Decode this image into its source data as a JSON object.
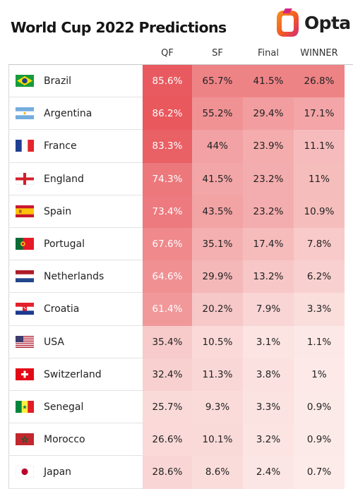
{
  "title": "World Cup 2022 Predictions",
  "brand": {
    "name": "Opta"
  },
  "colors": {
    "heat_max": "#e8585d",
    "heat_min": "#fdf0ee",
    "logo_orange": "#f26a2a",
    "logo_pink": "#d4267f"
  },
  "chart_data": {
    "type": "table",
    "columns": [
      "QF",
      "SF",
      "Final",
      "WINNER"
    ],
    "rows": [
      {
        "team": "Brazil",
        "flag_icon": "brazil-flag-icon",
        "values": [
          "85.6%",
          "65.7%",
          "41.5%",
          "26.8%"
        ]
      },
      {
        "team": "Argentina",
        "flag_icon": "argentina-flag-icon",
        "values": [
          "86.2%",
          "55.2%",
          "29.4%",
          "17.1%"
        ]
      },
      {
        "team": "France",
        "flag_icon": "france-flag-icon",
        "values": [
          "83.3%",
          "44%",
          "23.9%",
          "11.1%"
        ]
      },
      {
        "team": "England",
        "flag_icon": "england-flag-icon",
        "values": [
          "74.3%",
          "41.5%",
          "23.2%",
          "11%"
        ]
      },
      {
        "team": "Spain",
        "flag_icon": "spain-flag-icon",
        "values": [
          "73.4%",
          "43.5%",
          "23.2%",
          "10.9%"
        ]
      },
      {
        "team": "Portugal",
        "flag_icon": "portugal-flag-icon",
        "values": [
          "67.6%",
          "35.1%",
          "17.4%",
          "7.8%"
        ]
      },
      {
        "team": "Netherlands",
        "flag_icon": "netherlands-flag-icon",
        "values": [
          "64.6%",
          "29.9%",
          "13.2%",
          "6.2%"
        ]
      },
      {
        "team": "Croatia",
        "flag_icon": "croatia-flag-icon",
        "values": [
          "61.4%",
          "20.2%",
          "7.9%",
          "3.3%"
        ]
      },
      {
        "team": "USA",
        "flag_icon": "usa-flag-icon",
        "values": [
          "35.4%",
          "10.5%",
          "3.1%",
          "1.1%"
        ]
      },
      {
        "team": "Switzerland",
        "flag_icon": "switzerland-flag-icon",
        "values": [
          "32.4%",
          "11.3%",
          "3.8%",
          "1%"
        ]
      },
      {
        "team": "Senegal",
        "flag_icon": "senegal-flag-icon",
        "values": [
          "25.7%",
          "9.3%",
          "3.3%",
          "0.9%"
        ]
      },
      {
        "team": "Morocco",
        "flag_icon": "morocco-flag-icon",
        "values": [
          "26.6%",
          "10.1%",
          "3.2%",
          "0.9%"
        ]
      },
      {
        "team": "Japan",
        "flag_icon": "japan-flag-icon",
        "values": [
          "28.6%",
          "8.6%",
          "2.4%",
          "0.7%"
        ]
      }
    ]
  }
}
